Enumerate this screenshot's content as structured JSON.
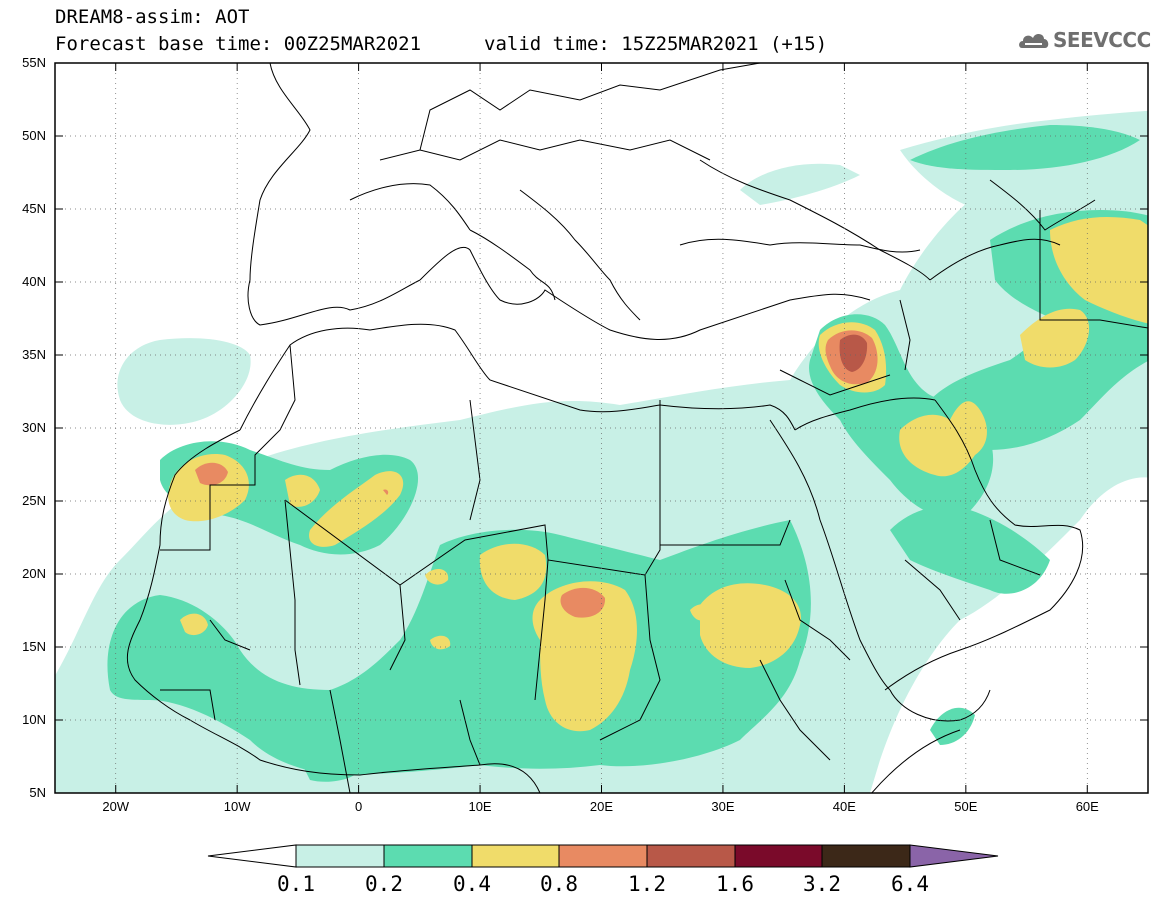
{
  "header": {
    "title": "DREAM8-assim: AOT",
    "base_time": "Forecast base time: 00Z25MAR2021",
    "valid_time": "valid time: 15Z25MAR2021 (+15)",
    "logo_text": "SEEVCCC"
  },
  "map": {
    "lon_range": [
      -25,
      65
    ],
    "lat_range": [
      5,
      55
    ],
    "lat_labels": [
      "55N",
      "50N",
      "45N",
      "40N",
      "35N",
      "30N",
      "25N",
      "20N",
      "15N",
      "10N",
      "5N"
    ],
    "lon_labels": [
      "20W",
      "10W",
      "0",
      "10E",
      "20E",
      "30E",
      "40E",
      "50E",
      "60E"
    ],
    "gridlines": "dotted"
  },
  "colorbar": {
    "levels": [
      "0.1",
      "0.2",
      "0.4",
      "0.8",
      "1.2",
      "1.6",
      "3.2",
      "6.4"
    ],
    "colors": {
      "c1": "#c8f0e6",
      "c2": "#5cdcb0",
      "c3": "#f0dc6a",
      "c4": "#e88a62",
      "c5": "#b85848",
      "c6": "#7a0a2a",
      "c7": "#3c2818",
      "c8": "#8a64a8"
    }
  }
}
